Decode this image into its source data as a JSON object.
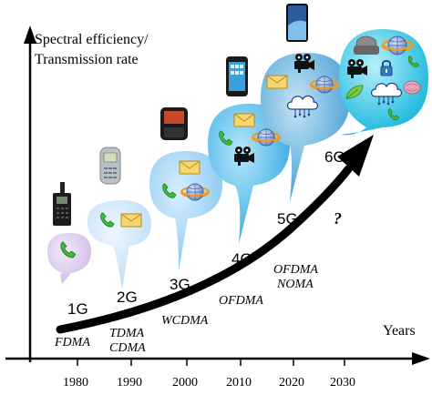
{
  "axes": {
    "y_label_line1": "Spectral efficiency/",
    "y_label_line2": "Transmission rate",
    "x_label": "Years",
    "x_ticks": [
      "1980",
      "1990",
      "2000",
      "2010",
      "2020",
      "2030"
    ]
  },
  "generations": [
    {
      "name": "1G",
      "tech": [
        "FDMA"
      ],
      "icons": [
        "phone-icon"
      ]
    },
    {
      "name": "2G",
      "tech": [
        "TDMA",
        "CDMA"
      ],
      "icons": [
        "phone-icon",
        "mail-icon"
      ]
    },
    {
      "name": "3G",
      "tech": [
        "WCDMA"
      ],
      "icons": [
        "phone-icon",
        "mail-icon",
        "globe-icon"
      ]
    },
    {
      "name": "4G",
      "tech": [
        "OFDMA"
      ],
      "icons": [
        "phone-icon",
        "mail-icon",
        "globe-icon",
        "video-camera-icon"
      ]
    },
    {
      "name": "5G",
      "tech": [
        "OFDMA",
        "NOMA"
      ],
      "icons": [
        "video-camera-icon",
        "mail-icon",
        "cloud-icon",
        "globe-icon"
      ]
    },
    {
      "name": "6G",
      "tech": [
        "?"
      ],
      "icons": [
        "vr-headset-icon",
        "globe-icon",
        "video-camera-icon",
        "lock-icon",
        "cloud-icon",
        "leaf-icon",
        "phone-icon",
        "brain-icon"
      ]
    }
  ],
  "devices": [
    "brick-phone-icon",
    "nokia-phone-icon",
    "blackberry-icon",
    "smartphone-icon",
    "modern-smartphone-icon"
  ],
  "colors": {
    "arrow": "#000000",
    "bubble_1g": "#dcc8ec",
    "bubble_2g": "#cfe7fb",
    "bubble_3g": "#a9d9f6",
    "bubble_4g": "#5fc2ef",
    "bubble_5g": "#66b8e2",
    "bubble_6g": "#36c8e8",
    "phone_green": "#3eb83e",
    "mail_yellow": "#f3d46a"
  }
}
